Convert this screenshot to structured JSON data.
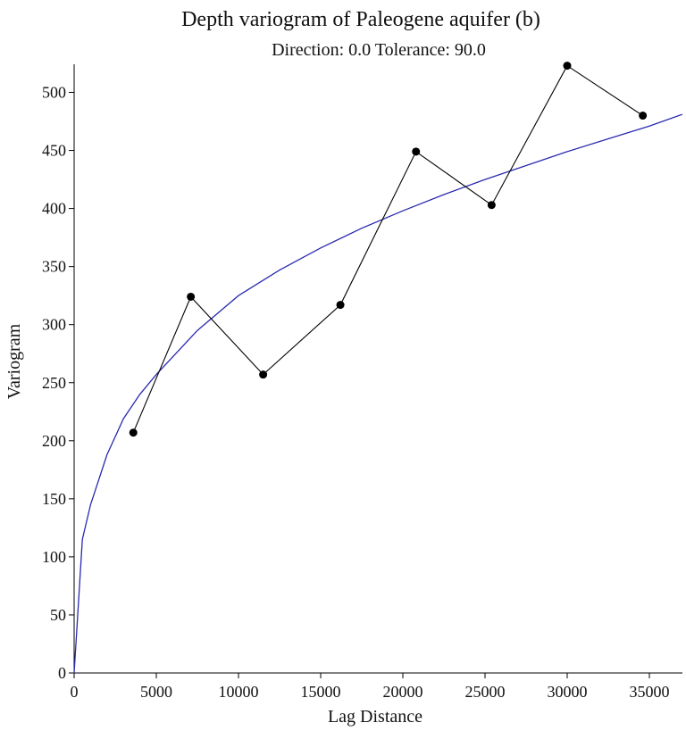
{
  "chart_data": {
    "type": "scatter",
    "title": "Depth variogram of Paleogene aquifer (b)",
    "subtitle": "Direction: 0.0 Tolerance: 90.0",
    "xlabel": "Lag Distance",
    "ylabel": "Variogram",
    "xlim": [
      0,
      37000
    ],
    "ylim": [
      0,
      520
    ],
    "xticks": [
      0,
      5000,
      10000,
      15000,
      20000,
      25000,
      30000,
      35000
    ],
    "yticks": [
      0,
      50,
      100,
      150,
      200,
      250,
      300,
      350,
      400,
      450,
      500
    ],
    "grid": false,
    "series": [
      {
        "kind": "experimental",
        "color": "#000000",
        "points": [
          {
            "x": 3600,
            "y": 207
          },
          {
            "x": 7100,
            "y": 324
          },
          {
            "x": 11500,
            "y": 257
          },
          {
            "x": 16200,
            "y": 317
          },
          {
            "x": 20800,
            "y": 449
          },
          {
            "x": 25400,
            "y": 403
          },
          {
            "x": 30000,
            "y": 523
          },
          {
            "x": 34600,
            "y": 480
          }
        ]
      },
      {
        "kind": "model",
        "color": "#2a2ab0",
        "points": [
          {
            "x": 0,
            "y": 0
          },
          {
            "x": 500,
            "y": 115
          },
          {
            "x": 1000,
            "y": 145
          },
          {
            "x": 2000,
            "y": 188
          },
          {
            "x": 3000,
            "y": 219
          },
          {
            "x": 4000,
            "y": 240
          },
          {
            "x": 5000,
            "y": 257
          },
          {
            "x": 7500,
            "y": 295
          },
          {
            "x": 10000,
            "y": 325
          },
          {
            "x": 12500,
            "y": 347
          },
          {
            "x": 15000,
            "y": 366
          },
          {
            "x": 17500,
            "y": 383
          },
          {
            "x": 20000,
            "y": 398
          },
          {
            "x": 22500,
            "y": 412
          },
          {
            "x": 25000,
            "y": 425
          },
          {
            "x": 27500,
            "y": 437
          },
          {
            "x": 30000,
            "y": 449
          },
          {
            "x": 32500,
            "y": 460
          },
          {
            "x": 35000,
            "y": 471
          },
          {
            "x": 37000,
            "y": 481
          }
        ]
      }
    ]
  }
}
